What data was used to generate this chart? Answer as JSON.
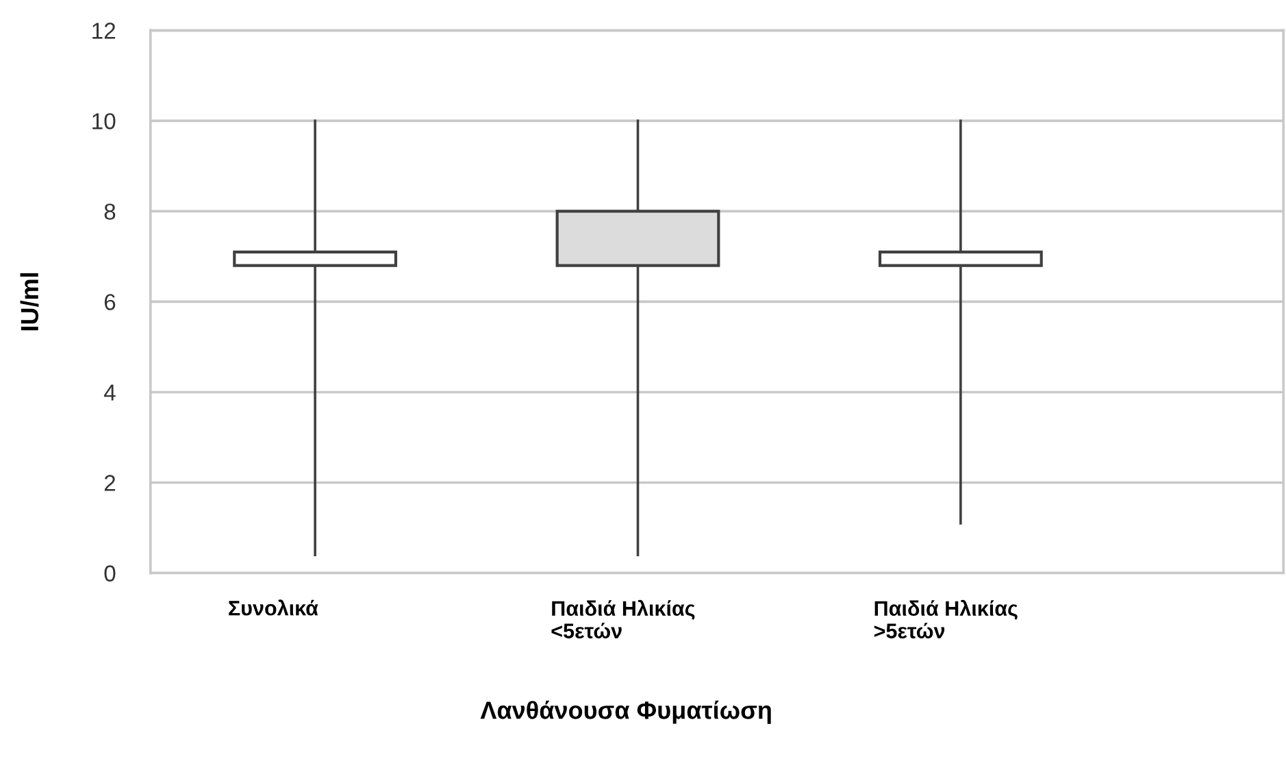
{
  "chart_data": {
    "type": "box",
    "xlabel": "Λανθάνουσα Φυματίωση",
    "ylabel": "IU/ml",
    "categories": [
      "Συνολικά",
      "Παιδιά Ηλικίας\n<5ετών",
      "Παιδιά Ηλικίας\n>5ετών"
    ],
    "boxes": [
      {
        "low": 0.4,
        "q1": 6.8,
        "median": 6.8,
        "q3": 7.1,
        "high": 10
      },
      {
        "low": 0.4,
        "q1": 6.8,
        "median": 6.8,
        "q3": 8.0,
        "high": 10
      },
      {
        "low": 1.1,
        "q1": 6.8,
        "median": 6.8,
        "q3": 7.1,
        "high": 10
      }
    ],
    "colors": [
      "#ffffff",
      "#dcdcdc",
      "#ffffff"
    ],
    "ylim": [
      0,
      12
    ],
    "yticks": [
      0,
      2,
      4,
      6,
      8,
      10,
      12
    ],
    "grid": "y",
    "legend": false
  }
}
